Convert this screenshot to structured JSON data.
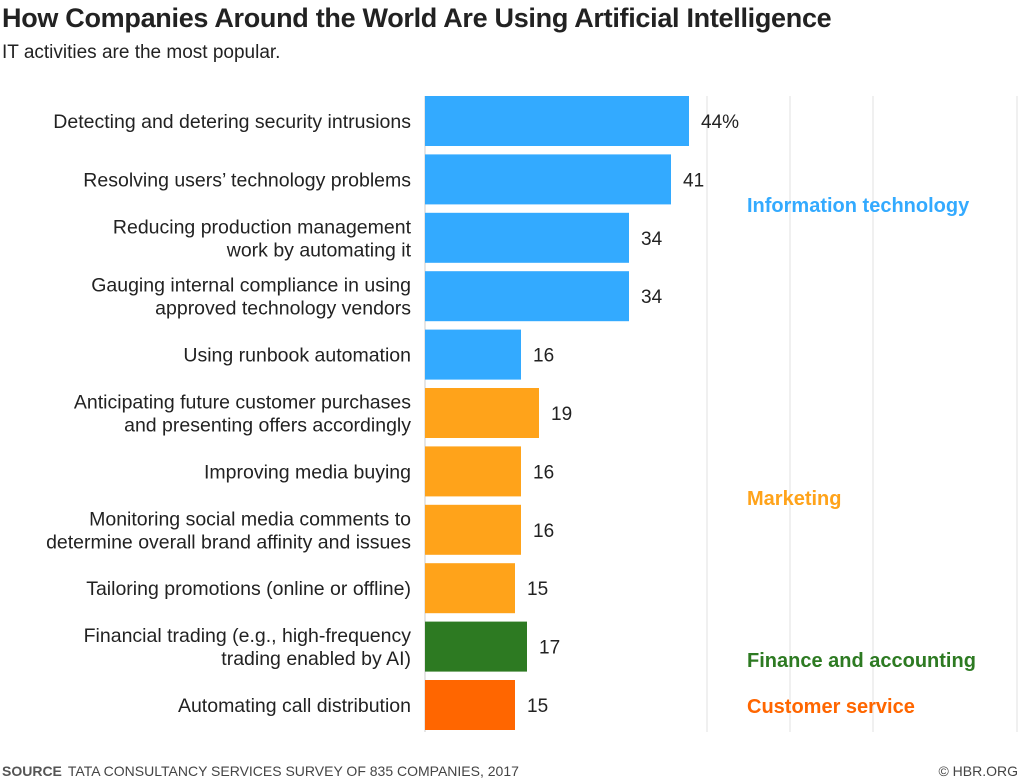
{
  "chart_data": {
    "type": "bar",
    "orientation": "horizontal",
    "title": "How Companies Around the World Are Using Artificial Intelligence",
    "subtitle": "IT activities are the most popular.",
    "xlim": [
      0,
      50
    ],
    "grid": true,
    "categories": [
      [
        "Detecting and detering security intrusions"
      ],
      [
        "Resolving users’ technology problems"
      ],
      [
        "Reducing production management",
        "work by automating it"
      ],
      [
        "Gauging internal compliance in using",
        "approved technology vendors"
      ],
      [
        "Using runbook automation"
      ],
      [
        "Anticipating future customer purchases",
        "and presenting offers accordingly"
      ],
      [
        "Improving media buying"
      ],
      [
        "Monitoring social media comments to",
        "determine overall brand affinity and issues"
      ],
      [
        "Tailoring promotions (online or offline)"
      ],
      [
        "Financial trading (e.g., high-frequency",
        "trading enabled by AI)"
      ],
      [
        "Automating call distribution"
      ]
    ],
    "values": [
      44,
      41,
      34,
      34,
      16,
      19,
      16,
      16,
      15,
      17,
      15
    ],
    "value_labels": [
      "44%",
      "41",
      "34",
      "34",
      "16",
      "19",
      "16",
      "16",
      "15",
      "17",
      "15"
    ],
    "groups": [
      {
        "name": "Information technology",
        "color": "#33aaff",
        "start": 0,
        "end": 4
      },
      {
        "name": "Marketing",
        "color": "#ffa31a",
        "start": 5,
        "end": 8
      },
      {
        "name": "Finance and accounting",
        "color": "#2d7a22",
        "start": 9,
        "end": 9
      },
      {
        "name": "Customer service",
        "color": "#ff6600",
        "start": 10,
        "end": 10
      }
    ]
  },
  "footer": {
    "source_label": "SOURCE",
    "source_text": "TATA CONSULTANCY SERVICES SURVEY OF 835 COMPANIES, 2017",
    "copyright": "© HBR.ORG"
  }
}
